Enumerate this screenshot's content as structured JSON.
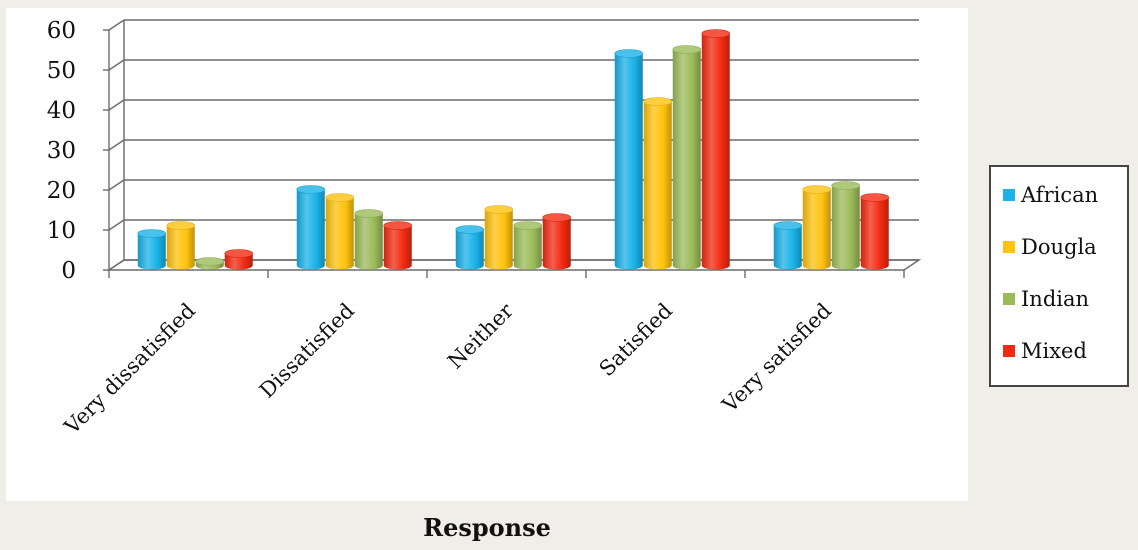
{
  "chart_data": {
    "type": "bar",
    "title": "",
    "xlabel": "Response",
    "ylabel": "",
    "ylim": [
      0,
      60
    ],
    "yticks": [
      0,
      10,
      20,
      30,
      40,
      50,
      60
    ],
    "grid": true,
    "legend_position": "right",
    "categories": [
      "Very dissatisfied",
      "Dissatisfied",
      "Neither",
      "Satisfied",
      "Very satisfied"
    ],
    "series": [
      {
        "name": "African",
        "color": "#1ab2e8",
        "values": [
          8,
          19,
          9,
          53,
          10
        ]
      },
      {
        "name": "Dougla",
        "color": "#ffc20e",
        "values": [
          10,
          17,
          14,
          41,
          19
        ]
      },
      {
        "name": "Indian",
        "color": "#9bbb59",
        "values": [
          1,
          13,
          10,
          54,
          20
        ]
      },
      {
        "name": "Mixed",
        "color": "#f22a11",
        "values": [
          3,
          10,
          12,
          58,
          17
        ]
      }
    ]
  }
}
